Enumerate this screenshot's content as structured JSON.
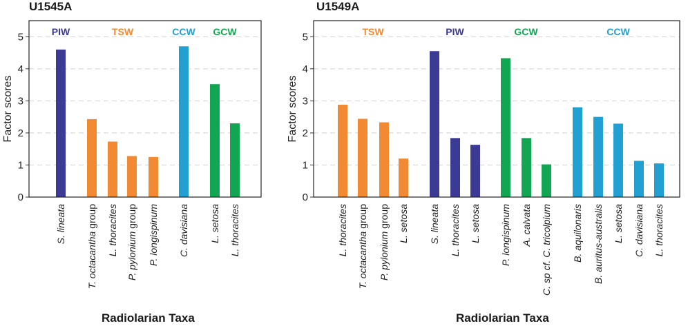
{
  "chart_data": [
    {
      "type": "bar",
      "title": "U1545A",
      "xlabel": "Radiolarian Taxa",
      "ylabel": "Factor scores",
      "ylim": [
        0,
        5.5
      ],
      "yticks": [
        0,
        1,
        2,
        3,
        4,
        5
      ],
      "grid": "horizontal-dashed",
      "groups": [
        {
          "name": "PIW",
          "color": "#3b3b96",
          "categories": [
            "S. lineata"
          ],
          "values": [
            4.6
          ]
        },
        {
          "name": "TSW",
          "color": "#f28a33",
          "categories": [
            "T. octacantha group",
            "L. thoracites",
            "P. pylonium group",
            "P. longispinum"
          ],
          "values": [
            2.43,
            1.73,
            1.28,
            1.25
          ]
        },
        {
          "name": "CCW",
          "color": "#22a0d2",
          "categories": [
            "C. davisiana"
          ],
          "values": [
            4.7
          ]
        },
        {
          "name": "GCW",
          "color": "#12a552",
          "categories": [
            "L. setosa",
            "L. thoracites"
          ],
          "values": [
            3.52,
            2.3
          ]
        }
      ]
    },
    {
      "type": "bar",
      "title": "U1549A",
      "xlabel": "Radiolarian Taxa",
      "ylabel": "Factor scores",
      "ylim": [
        0,
        5.5
      ],
      "yticks": [
        0,
        1,
        2,
        3,
        4,
        5
      ],
      "grid": "horizontal-dashed",
      "groups": [
        {
          "name": "TSW",
          "color": "#f28a33",
          "categories": [
            "L. thoracites",
            "T. octacantha group",
            "P. pylonium group",
            "L. setosa"
          ],
          "values": [
            2.88,
            2.44,
            2.33,
            1.2
          ]
        },
        {
          "name": "PIW",
          "color": "#3b3b96",
          "categories": [
            "S. lineata",
            "L. thoracites",
            "L. setosa"
          ],
          "values": [
            4.55,
            1.84,
            1.63
          ]
        },
        {
          "name": "GCW",
          "color": "#12a552",
          "categories": [
            "P. longispinum",
            "A. calvata",
            "C. sp cf. C. tricolpium"
          ],
          "values": [
            4.33,
            1.84,
            1.02
          ]
        },
        {
          "name": "CCW",
          "color": "#22a0d2",
          "categories": [
            "B. aquilonaris",
            "B. auritus-australis",
            "L. setosa",
            "C. davisiana",
            "L. thoracites"
          ],
          "values": [
            2.8,
            2.5,
            2.29,
            1.13,
            1.05
          ]
        }
      ]
    }
  ]
}
